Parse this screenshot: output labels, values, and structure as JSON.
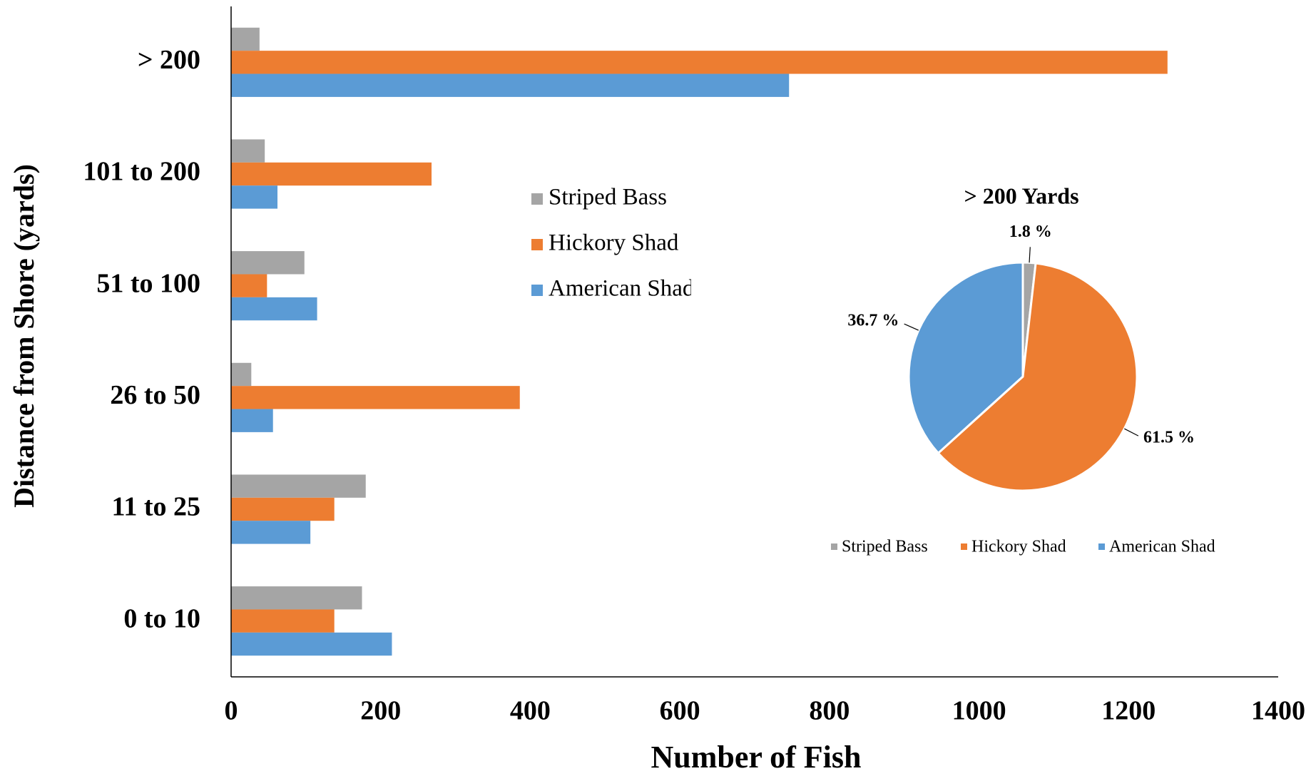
{
  "chart_data": [
    {
      "type": "hbar",
      "x_label": "Number  of Fish",
      "y_label": "Distance from Shore (yards)",
      "categories": [
        "0 to 10",
        "11 to 25",
        "26 to 50",
        "51 to 100",
        "101 to 200",
        "> 200"
      ],
      "series": [
        {
          "name": "Striped Bass",
          "color": "#a5a5a5",
          "values": [
            175,
            180,
            27,
            98,
            45,
            38
          ]
        },
        {
          "name": "Hickory Shad",
          "color": "#ed7d31",
          "values": [
            138,
            138,
            386,
            48,
            268,
            1252
          ]
        },
        {
          "name": "American Shad",
          "color": "#5b9bd5",
          "values": [
            215,
            106,
            56,
            115,
            62,
            746
          ]
        }
      ],
      "xlim": [
        0,
        1400
      ],
      "xticks": [
        0,
        200,
        400,
        600,
        800,
        1000,
        1200,
        1400
      ],
      "grid": false
    },
    {
      "type": "pie",
      "title": "> 200 Yards",
      "categories": [
        "Striped Bass",
        "Hickory Shad",
        "American Shad"
      ],
      "values": [
        1.8,
        61.5,
        36.7
      ],
      "value_labels": [
        "1.8 %",
        "61.5 %",
        "36.7 %"
      ],
      "colors": [
        "#a5a5a5",
        "#ed7d31",
        "#5b9bd5"
      ]
    }
  ]
}
